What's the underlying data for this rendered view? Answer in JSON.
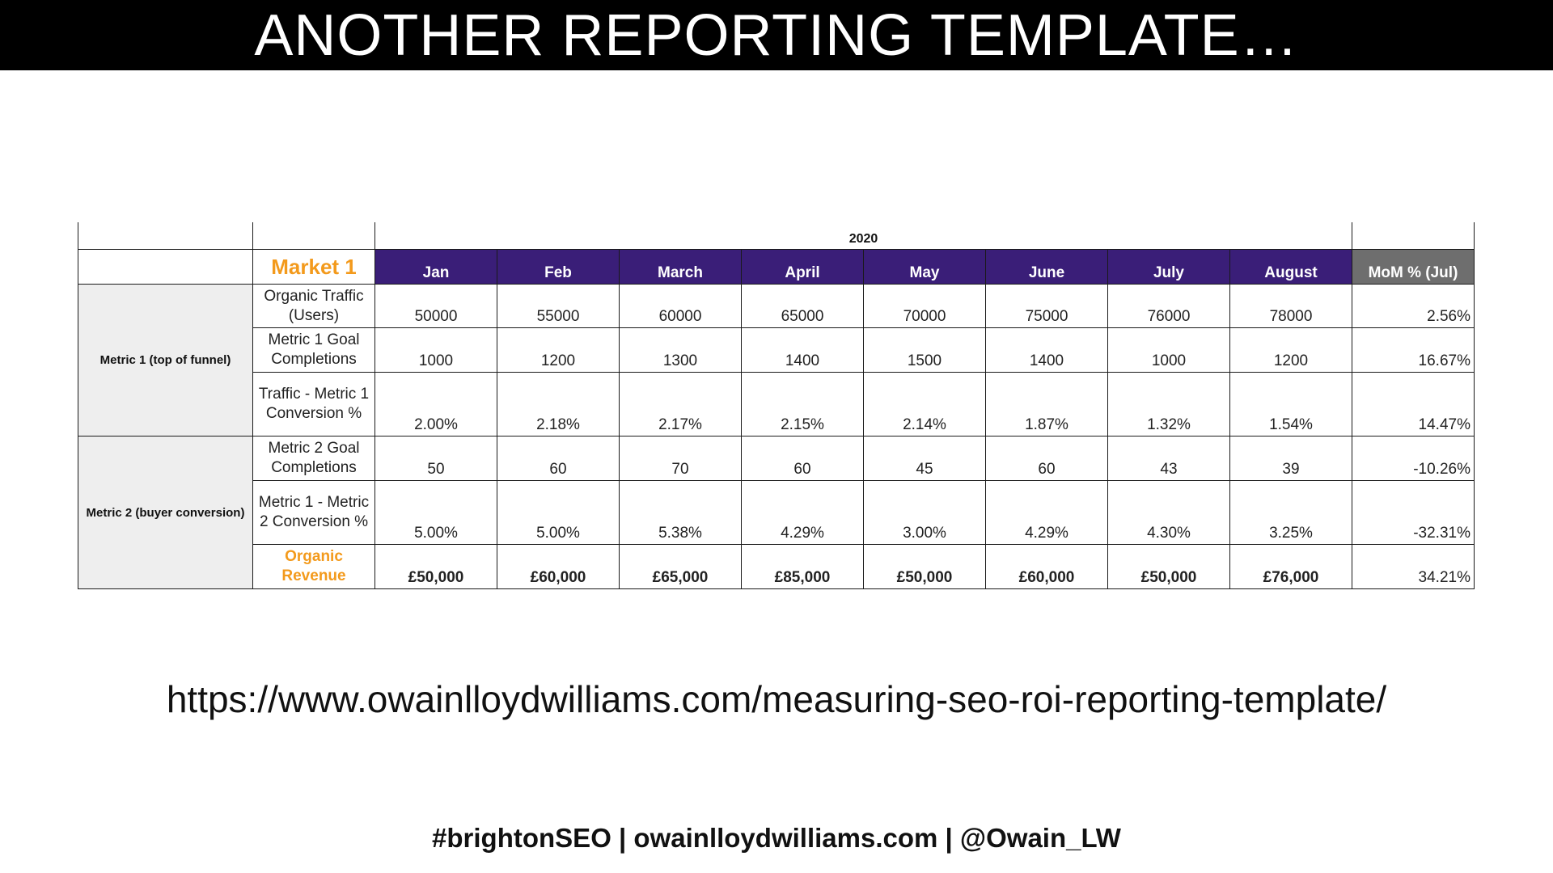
{
  "slide": {
    "title": "ANOTHER REPORTING TEMPLATE…",
    "url": "https://www.owainlloydwilliams.com/measuring-seo-roi-reporting-template/",
    "footer": "#brightonSEO | owainlloydwilliams.com | @Owain_LW"
  },
  "table": {
    "year": "2020",
    "market": "Market 1",
    "months": [
      "Jan",
      "Feb",
      "March",
      "April",
      "May",
      "June",
      "July",
      "August"
    ],
    "mom_header": "MoM % (Jul)",
    "groups": [
      {
        "label": "Metric 1 (top of funnel)"
      },
      {
        "label": "Metric 2 (buyer conversion)"
      }
    ],
    "rows": [
      {
        "label": "Organic Traffic (Users)",
        "values": [
          "50000",
          "55000",
          "60000",
          "65000",
          "70000",
          "75000",
          "76000",
          "78000"
        ],
        "mom": "2.56%"
      },
      {
        "label": "Metric 1 Goal Completions",
        "values": [
          "1000",
          "1200",
          "1300",
          "1400",
          "1500",
          "1400",
          "1000",
          "1200"
        ],
        "mom": "16.67%"
      },
      {
        "label": "Traffic - Metric 1 Conversion %",
        "values": [
          "2.00%",
          "2.18%",
          "2.17%",
          "2.15%",
          "2.14%",
          "1.87%",
          "1.32%",
          "1.54%"
        ],
        "mom": "14.47%"
      },
      {
        "label": "Metric 2 Goal Completions",
        "values": [
          "50",
          "60",
          "70",
          "60",
          "45",
          "60",
          "43",
          "39"
        ],
        "mom": "-10.26%"
      },
      {
        "label": "Metric 1 - Metric 2 Conversion %",
        "values": [
          "5.00%",
          "5.00%",
          "5.38%",
          "4.29%",
          "3.00%",
          "4.29%",
          "4.30%",
          "3.25%"
        ],
        "mom": "-32.31%"
      },
      {
        "label": "Organic Revenue",
        "values": [
          "£50,000",
          "£60,000",
          "£65,000",
          "£85,000",
          "£50,000",
          "£60,000",
          "£50,000",
          "£76,000"
        ],
        "mom": "34.21%"
      }
    ]
  },
  "colors": {
    "header_purple": "#3a1e78",
    "mom_header_gray": "#6e6e6e",
    "market_orange": "#f39a1c",
    "group_bg": "#eeeeee"
  }
}
